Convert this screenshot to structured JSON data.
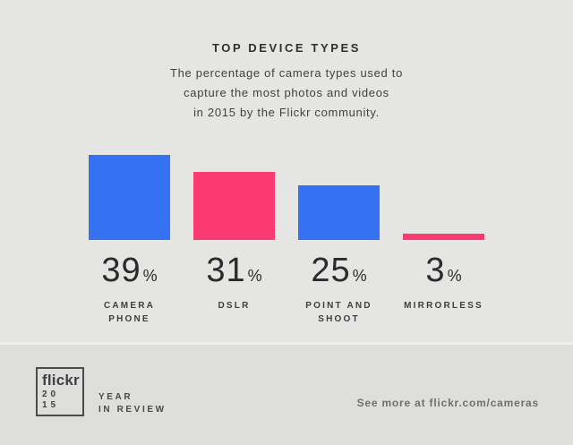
{
  "page": {
    "background": "#e5e5e3",
    "footer_background": "#dededc"
  },
  "header": {
    "title": "TOP DEVICE TYPES",
    "subtitle_lines": [
      "The percentage of camera types used to",
      "capture the most photos and videos",
      "in 2015 by the Flickr community."
    ]
  },
  "chart_data": {
    "type": "bar",
    "title": "TOP DEVICE TYPES",
    "categories": [
      "CAMERA PHONE",
      "DSLR",
      "POINT AND SHOOT",
      "MIRRORLESS"
    ],
    "values": [
      39,
      31,
      25,
      3
    ],
    "unit": "%",
    "value_labels": [
      "39",
      "31",
      "25",
      "3"
    ],
    "category_label_lines": [
      [
        "CAMERA",
        "PHONE"
      ],
      [
        "DSLR"
      ],
      [
        "POINT AND",
        "SHOOT"
      ],
      [
        "MIRRORLESS"
      ]
    ],
    "colors": [
      "#3572f2",
      "#fa3a70",
      "#3572f2",
      "#fa3a70"
    ],
    "bar_color_blue": "#3572f2",
    "bar_color_pink": "#fa3a70",
    "ylim": [
      0,
      40
    ],
    "grid": false,
    "legend": false,
    "xlabel": "",
    "ylabel": ""
  },
  "footer": {
    "logo": {
      "brand": "flickr",
      "year_top": "20",
      "year_bottom": "15"
    },
    "tagline_lines": [
      "YEAR",
      "IN REVIEW"
    ],
    "see_more": "See more at flickr.com/cameras"
  }
}
